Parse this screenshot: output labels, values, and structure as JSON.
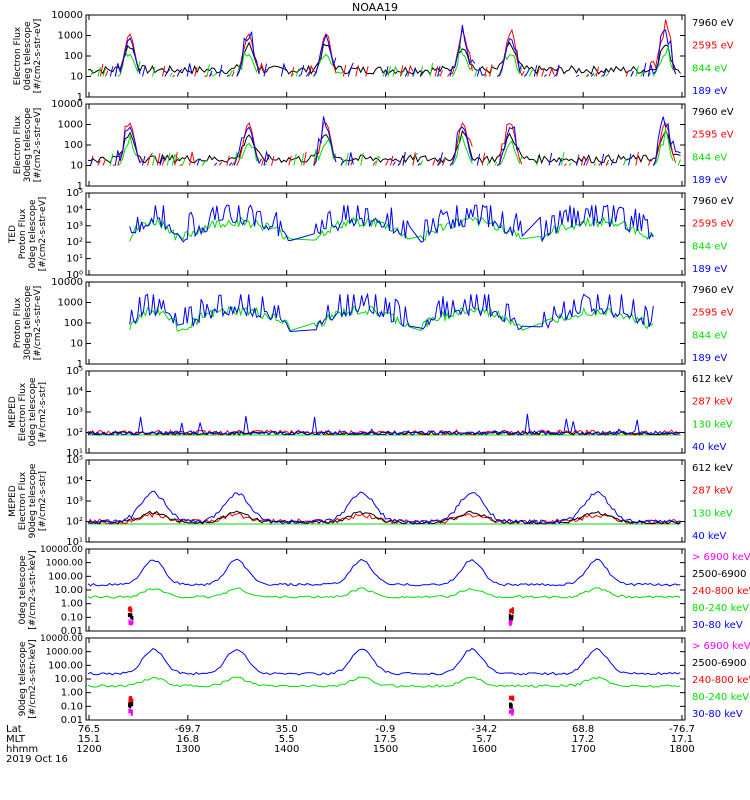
{
  "title": "NOAA19",
  "colors": {
    "blue": "#0000ff",
    "red": "#ff0000",
    "green": "#00dd00",
    "black": "#000000",
    "magenta": "#ff00ff"
  },
  "chart_data": [
    {
      "type": "line",
      "ylabel": [
        "Electron Flux",
        "0deg telescope",
        "[#/cm2-s-str-eV]"
      ],
      "scale": "log",
      "ylim": [
        1,
        10000
      ],
      "ticks": [
        "1",
        "10",
        "100",
        "1000",
        "10000"
      ],
      "series": [
        {
          "name": "7960 eV",
          "color": "black"
        },
        {
          "name": "2595 eV",
          "color": "red"
        },
        {
          "name": "844 eV",
          "color": "green"
        },
        {
          "name": "189 eV",
          "color": "blue"
        }
      ]
    },
    {
      "type": "line",
      "ylabel": [
        "Electron Flux",
        "30deg telescope",
        "[#/cm2-s-str-eV]"
      ],
      "scale": "log",
      "ylim": [
        1,
        10000
      ],
      "ticks": [
        "1",
        "10",
        "100",
        "1000",
        "10000"
      ],
      "series": [
        {
          "name": "7960 eV",
          "color": "black"
        },
        {
          "name": "2595 eV",
          "color": "red"
        },
        {
          "name": "844 eV",
          "color": "green"
        },
        {
          "name": "189 eV",
          "color": "blue"
        }
      ]
    },
    {
      "type": "line",
      "ylabel": [
        "TED",
        "Proton Flux",
        "0deg telescope",
        "[#/cm2-s-str-eV]"
      ],
      "scale": "log",
      "ylim": [
        1,
        100000
      ],
      "ticks": [
        "10⁰",
        "10¹",
        "10²",
        "10³",
        "10⁴",
        "10⁵"
      ],
      "series": [
        {
          "name": "7960 eV",
          "color": "black"
        },
        {
          "name": "2595 eV",
          "color": "red"
        },
        {
          "name": "844 eV",
          "color": "green"
        },
        {
          "name": "189 eV",
          "color": "blue"
        }
      ]
    },
    {
      "type": "line",
      "ylabel": [
        "Proton Flux",
        "30deg telescope",
        "[#/cm2-s-str-eV]"
      ],
      "scale": "log",
      "ylim": [
        1,
        10000
      ],
      "ticks": [
        "1",
        "10",
        "100",
        "1000",
        "10000"
      ],
      "series": [
        {
          "name": "7960 eV",
          "color": "black"
        },
        {
          "name": "2595 eV",
          "color": "red"
        },
        {
          "name": "844 eV",
          "color": "green"
        },
        {
          "name": "189 eV",
          "color": "blue"
        }
      ]
    },
    {
      "type": "line",
      "ylabel": [
        "MEPED",
        "Electron Flux",
        "0deg telescope",
        "[#/cm2-s-str]"
      ],
      "scale": "log",
      "ylim": [
        10,
        100000
      ],
      "ticks": [
        "10¹",
        "10²",
        "10³",
        "10⁴",
        "10⁵"
      ],
      "series": [
        {
          "name": "612 keV",
          "color": "black"
        },
        {
          "name": "287 keV",
          "color": "red"
        },
        {
          "name": "130 keV",
          "color": "green"
        },
        {
          "name": "40 keV",
          "color": "blue"
        }
      ]
    },
    {
      "type": "line",
      "ylabel": [
        "MEPED",
        "Electron Flux",
        "90deg telescope",
        "[#/cm2-s-str]"
      ],
      "scale": "log",
      "ylim": [
        10,
        100000
      ],
      "ticks": [
        "10¹",
        "10²",
        "10³",
        "10⁴",
        "10⁵"
      ],
      "series": [
        {
          "name": "612 keV",
          "color": "black"
        },
        {
          "name": "287 keV",
          "color": "red"
        },
        {
          "name": "130 keV",
          "color": "green"
        },
        {
          "name": "40 keV",
          "color": "blue"
        }
      ]
    },
    {
      "type": "line",
      "ylabel": [
        "0deg telescope",
        "[#/cm2-s-str-keV]"
      ],
      "scale": "log",
      "ylim": [
        0.01,
        10000
      ],
      "ticks": [
        "0.01",
        "0.10",
        "1.00",
        "10.00",
        "100.00",
        "1000.00",
        "10000.00"
      ],
      "series": [
        {
          "name": "> 6900 keV",
          "color": "magenta"
        },
        {
          "name": "2500-6900",
          "color": "black"
        },
        {
          "name": "240-800 keV",
          "color": "red"
        },
        {
          "name": "80-240 keV",
          "color": "green"
        },
        {
          "name": "30-80 keV",
          "color": "blue"
        }
      ]
    },
    {
      "type": "line",
      "ylabel": [
        "90deg telescope",
        "[#/cm2-s-str-keV]"
      ],
      "scale": "log",
      "ylim": [
        0.01,
        10000
      ],
      "ticks": [
        "0.01",
        "0.10",
        "1.00",
        "10.00",
        "100.00",
        "1000.00",
        "10000.00"
      ],
      "series": [
        {
          "name": "> 6900 keV",
          "color": "magenta"
        },
        {
          "name": "2500-6900",
          "color": "black"
        },
        {
          "name": "240-800 keV",
          "color": "red"
        },
        {
          "name": "80-240 keV",
          "color": "green"
        },
        {
          "name": "30-80 keV",
          "color": "blue"
        }
      ]
    }
  ],
  "xaxis": {
    "row_labels": [
      "Lat",
      "MLT",
      "hhmm"
    ],
    "date": "2019 Oct 16",
    "columns": [
      {
        "lat": "76.5",
        "mlt": "15.1",
        "hhmm": "1200"
      },
      {
        "lat": "-69.7",
        "mlt": "16.8",
        "hhmm": "1300"
      },
      {
        "lat": "35.0",
        "mlt": "5.5",
        "hhmm": "1400"
      },
      {
        "lat": "-0.9",
        "mlt": "17.5",
        "hhmm": "1500"
      },
      {
        "lat": "-34.2",
        "mlt": "5.7",
        "hhmm": "1600"
      },
      {
        "lat": "68.8",
        "mlt": "17.2",
        "hhmm": "1700"
      },
      {
        "lat": "-76.7",
        "mlt": "17.1",
        "hhmm": "1800"
      }
    ]
  }
}
